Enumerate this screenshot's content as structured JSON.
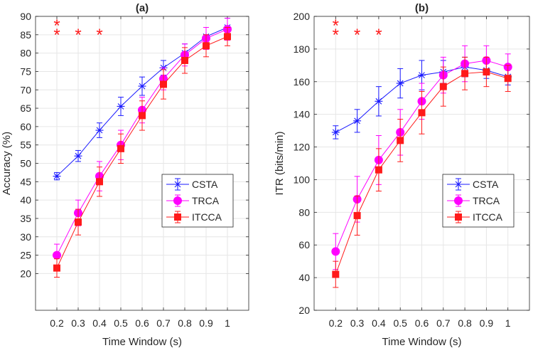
{
  "chart_data": [
    {
      "type": "line",
      "title": "(a)",
      "xlabel": "Time Window (s)",
      "ylabel": "Accuracy (%)",
      "x": [
        0.2,
        0.3,
        0.4,
        0.5,
        0.6,
        0.7,
        0.8,
        0.9,
        1
      ],
      "x_tick_labels": [
        "0.2",
        "0.3",
        "0.4",
        "0.5",
        "0.6",
        "0.7",
        "0.8",
        "0.9",
        "1"
      ],
      "xlim": [
        0.1,
        1.1
      ],
      "ylim": [
        10,
        90
      ],
      "y_ticks": [
        20,
        25,
        30,
        35,
        40,
        45,
        50,
        55,
        60,
        65,
        70,
        75,
        80,
        85,
        90
      ],
      "grid": true,
      "legend": "lower-right",
      "significance": {
        "symbol": "*",
        "color": "#ff1a1a",
        "marks": [
          {
            "x": 0.2,
            "count": 2
          },
          {
            "x": 0.3,
            "count": 1
          },
          {
            "x": 0.4,
            "count": 1
          }
        ]
      },
      "series": [
        {
          "name": "CSTA",
          "color": "#1a1aff",
          "marker": "asterisk",
          "values": [
            46.5,
            52,
            59,
            65.5,
            71,
            76,
            80,
            84.5,
            87
          ],
          "errors": [
            1,
            1.5,
            2,
            2.5,
            2.5,
            2,
            2.5,
            2.5,
            2.5
          ]
        },
        {
          "name": "TRCA",
          "color": "#ff00ff",
          "marker": "circle",
          "values": [
            25,
            36.5,
            46.5,
            55,
            64.5,
            73,
            79.5,
            84,
            86.5
          ],
          "errors": [
            3,
            3.5,
            4,
            4,
            3.5,
            3,
            3,
            3,
            3
          ]
        },
        {
          "name": "ITCCA",
          "color": "#ff1a1a",
          "marker": "square",
          "values": [
            21.5,
            34,
            45,
            54,
            63,
            71.5,
            78,
            82,
            84.5
          ],
          "errors": [
            2.5,
            3.5,
            4,
            4,
            4,
            4,
            3.5,
            3,
            2.5
          ]
        }
      ]
    },
    {
      "type": "line",
      "title": "(b)",
      "xlabel": "Time Window (s)",
      "ylabel": "ITR (bits/min)",
      "x": [
        0.2,
        0.3,
        0.4,
        0.5,
        0.6,
        0.7,
        0.8,
        0.9,
        1
      ],
      "x_tick_labels": [
        "0.2",
        "0.3",
        "0.4",
        "0.5",
        "0.6",
        "0.7",
        "0.8",
        "0.9",
        "1"
      ],
      "xlim": [
        0.1,
        1.1
      ],
      "ylim": [
        20,
        200
      ],
      "y_ticks": [
        20,
        40,
        60,
        80,
        100,
        120,
        140,
        160,
        180,
        200
      ],
      "grid": true,
      "legend": "lower-right",
      "significance": {
        "symbol": "*",
        "color": "#ff1a1a",
        "marks": [
          {
            "x": 0.2,
            "count": 2
          },
          {
            "x": 0.3,
            "count": 1
          },
          {
            "x": 0.4,
            "count": 1
          }
        ]
      },
      "series": [
        {
          "name": "CSTA",
          "color": "#1a1aff",
          "marker": "asterisk",
          "values": [
            129,
            136,
            148,
            159,
            164,
            166,
            169,
            167,
            163
          ],
          "errors": [
            4,
            7,
            9,
            9,
            9,
            7,
            6,
            5,
            5
          ]
        },
        {
          "name": "TRCA",
          "color": "#ff00ff",
          "marker": "circle",
          "values": [
            56,
            88,
            112,
            129,
            148,
            164,
            171,
            173,
            169
          ],
          "errors": [
            11,
            14,
            15,
            14,
            11,
            11,
            11,
            9,
            8
          ]
        },
        {
          "name": "ITCCA",
          "color": "#ff1a1a",
          "marker": "square",
          "values": [
            42,
            78,
            106,
            124,
            141,
            157,
            165,
            166,
            162
          ],
          "errors": [
            8,
            12,
            13,
            13,
            13,
            12,
            10,
            9,
            8
          ]
        }
      ]
    }
  ]
}
